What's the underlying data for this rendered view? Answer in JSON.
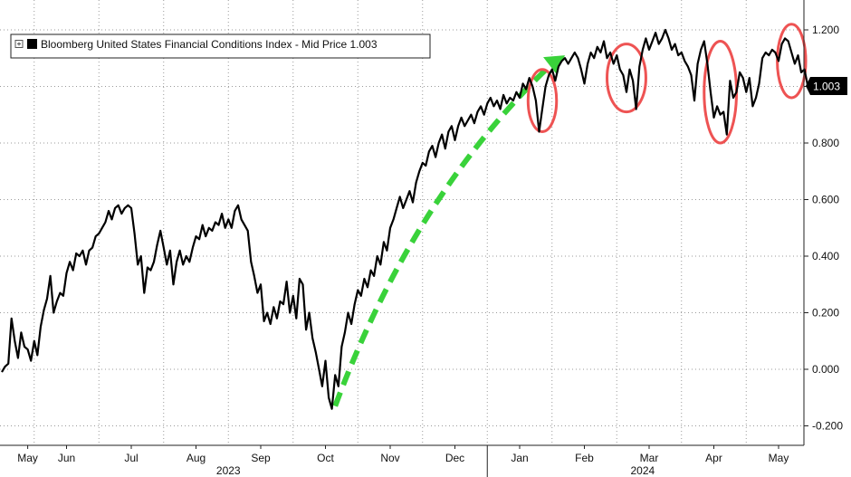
{
  "chart_data": {
    "type": "line",
    "title": "",
    "legend": {
      "label": "Bloomberg United States Financial Conditions Index - Mid Price 1.003",
      "placement": "top-left"
    },
    "last_value_label": "1.003",
    "yaxis": {
      "position": "right",
      "ylim": [
        -0.23,
        1.25
      ],
      "ticks": [
        "1.200",
        "1.000",
        "0.800",
        "0.600",
        "0.400",
        "0.200",
        "0.000",
        "-0.200"
      ]
    },
    "xaxis": {
      "months": [
        {
          "label": "May",
          "x": 0.4
        },
        {
          "label": "Jun",
          "x": 1.0
        },
        {
          "label": "Jul",
          "x": 2.0
        },
        {
          "label": "Aug",
          "x": 3.0
        },
        {
          "label": "Sep",
          "x": 4.0
        },
        {
          "label": "Oct",
          "x": 5.0
        },
        {
          "label": "Nov",
          "x": 6.0
        },
        {
          "label": "Dec",
          "x": 7.0
        },
        {
          "label": "Jan",
          "x": 8.0
        },
        {
          "label": "Feb",
          "x": 9.0
        },
        {
          "label": "Mar",
          "x": 10.0
        },
        {
          "label": "Apr",
          "x": 11.0
        },
        {
          "label": "May",
          "x": 12.0
        }
      ],
      "years": [
        {
          "label": "2023",
          "x": 3.5
        },
        {
          "label": "2024",
          "x": 9.9
        }
      ],
      "year_divider_x": 7.5
    },
    "grid": true,
    "series": [
      {
        "color": "#000000",
        "points": [
          [
            0.0,
            -0.01
          ],
          [
            0.05,
            0.01
          ],
          [
            0.1,
            0.02
          ],
          [
            0.15,
            0.18
          ],
          [
            0.2,
            0.1
          ],
          [
            0.25,
            0.04
          ],
          [
            0.3,
            0.13
          ],
          [
            0.35,
            0.08
          ],
          [
            0.4,
            0.07
          ],
          [
            0.45,
            0.03
          ],
          [
            0.5,
            0.1
          ],
          [
            0.55,
            0.05
          ],
          [
            0.6,
            0.15
          ],
          [
            0.65,
            0.21
          ],
          [
            0.7,
            0.25
          ],
          [
            0.75,
            0.33
          ],
          [
            0.8,
            0.2
          ],
          [
            0.85,
            0.24
          ],
          [
            0.9,
            0.27
          ],
          [
            0.95,
            0.26
          ],
          [
            1.0,
            0.34
          ],
          [
            1.05,
            0.38
          ],
          [
            1.1,
            0.35
          ],
          [
            1.15,
            0.41
          ],
          [
            1.2,
            0.4
          ],
          [
            1.25,
            0.42
          ],
          [
            1.3,
            0.37
          ],
          [
            1.35,
            0.42
          ],
          [
            1.4,
            0.43
          ],
          [
            1.45,
            0.47
          ],
          [
            1.5,
            0.48
          ],
          [
            1.55,
            0.5
          ],
          [
            1.6,
            0.52
          ],
          [
            1.65,
            0.56
          ],
          [
            1.7,
            0.53
          ],
          [
            1.75,
            0.57
          ],
          [
            1.8,
            0.58
          ],
          [
            1.85,
            0.55
          ],
          [
            1.9,
            0.57
          ],
          [
            1.95,
            0.58
          ],
          [
            2.0,
            0.57
          ],
          [
            2.05,
            0.48
          ],
          [
            2.1,
            0.37
          ],
          [
            2.15,
            0.4
          ],
          [
            2.2,
            0.27
          ],
          [
            2.25,
            0.36
          ],
          [
            2.3,
            0.35
          ],
          [
            2.35,
            0.38
          ],
          [
            2.4,
            0.44
          ],
          [
            2.45,
            0.49
          ],
          [
            2.5,
            0.43
          ],
          [
            2.55,
            0.37
          ],
          [
            2.6,
            0.42
          ],
          [
            2.65,
            0.3
          ],
          [
            2.7,
            0.38
          ],
          [
            2.75,
            0.42
          ],
          [
            2.8,
            0.37
          ],
          [
            2.85,
            0.4
          ],
          [
            2.9,
            0.38
          ],
          [
            2.95,
            0.43
          ],
          [
            3.0,
            0.47
          ],
          [
            3.05,
            0.46
          ],
          [
            3.1,
            0.51
          ],
          [
            3.15,
            0.47
          ],
          [
            3.2,
            0.5
          ],
          [
            3.25,
            0.49
          ],
          [
            3.3,
            0.52
          ],
          [
            3.35,
            0.51
          ],
          [
            3.4,
            0.55
          ],
          [
            3.45,
            0.5
          ],
          [
            3.5,
            0.53
          ],
          [
            3.55,
            0.5
          ],
          [
            3.6,
            0.56
          ],
          [
            3.65,
            0.58
          ],
          [
            3.7,
            0.53
          ],
          [
            3.75,
            0.51
          ],
          [
            3.8,
            0.49
          ],
          [
            3.85,
            0.38
          ],
          [
            3.9,
            0.33
          ],
          [
            3.95,
            0.27
          ],
          [
            4.0,
            0.3
          ],
          [
            4.05,
            0.17
          ],
          [
            4.1,
            0.2
          ],
          [
            4.15,
            0.16
          ],
          [
            4.2,
            0.22
          ],
          [
            4.25,
            0.18
          ],
          [
            4.3,
            0.24
          ],
          [
            4.35,
            0.23
          ],
          [
            4.4,
            0.31
          ],
          [
            4.45,
            0.2
          ],
          [
            4.5,
            0.26
          ],
          [
            4.55,
            0.18
          ],
          [
            4.6,
            0.32
          ],
          [
            4.65,
            0.3
          ],
          [
            4.7,
            0.14
          ],
          [
            4.75,
            0.2
          ],
          [
            4.8,
            0.11
          ],
          [
            4.85,
            0.06
          ],
          [
            4.9,
            0.0
          ],
          [
            4.95,
            -0.06
          ],
          [
            5.0,
            0.03
          ],
          [
            5.05,
            -0.1
          ],
          [
            5.1,
            -0.14
          ],
          [
            5.15,
            -0.02
          ],
          [
            5.2,
            -0.06
          ],
          [
            5.25,
            0.08
          ],
          [
            5.3,
            0.13
          ],
          [
            5.35,
            0.2
          ],
          [
            5.4,
            0.16
          ],
          [
            5.45,
            0.23
          ],
          [
            5.5,
            0.28
          ],
          [
            5.55,
            0.26
          ],
          [
            5.6,
            0.32
          ],
          [
            5.65,
            0.29
          ],
          [
            5.7,
            0.35
          ],
          [
            5.75,
            0.33
          ],
          [
            5.8,
            0.4
          ],
          [
            5.85,
            0.37
          ],
          [
            5.9,
            0.45
          ],
          [
            5.95,
            0.42
          ],
          [
            6.0,
            0.5
          ],
          [
            6.05,
            0.53
          ],
          [
            6.1,
            0.57
          ],
          [
            6.15,
            0.61
          ],
          [
            6.2,
            0.57
          ],
          [
            6.25,
            0.6
          ],
          [
            6.3,
            0.63
          ],
          [
            6.35,
            0.59
          ],
          [
            6.4,
            0.66
          ],
          [
            6.45,
            0.7
          ],
          [
            6.5,
            0.73
          ],
          [
            6.55,
            0.72
          ],
          [
            6.6,
            0.77
          ],
          [
            6.65,
            0.79
          ],
          [
            6.7,
            0.75
          ],
          [
            6.75,
            0.8
          ],
          [
            6.8,
            0.83
          ],
          [
            6.85,
            0.78
          ],
          [
            6.9,
            0.84
          ],
          [
            6.95,
            0.86
          ],
          [
            7.0,
            0.81
          ],
          [
            7.05,
            0.86
          ],
          [
            7.1,
            0.89
          ],
          [
            7.15,
            0.86
          ],
          [
            7.2,
            0.88
          ],
          [
            7.25,
            0.9
          ],
          [
            7.3,
            0.87
          ],
          [
            7.35,
            0.91
          ],
          [
            7.4,
            0.93
          ],
          [
            7.45,
            0.9
          ],
          [
            7.5,
            0.94
          ],
          [
            7.55,
            0.96
          ],
          [
            7.6,
            0.93
          ],
          [
            7.65,
            0.95
          ],
          [
            7.7,
            0.92
          ],
          [
            7.75,
            0.97
          ],
          [
            7.8,
            0.94
          ],
          [
            7.85,
            0.96
          ],
          [
            7.9,
            0.95
          ],
          [
            7.95,
            0.98
          ],
          [
            8.0,
            0.96
          ],
          [
            8.05,
            1.01
          ],
          [
            8.1,
            0.99
          ],
          [
            8.15,
            1.03
          ],
          [
            8.2,
            1.0
          ],
          [
            8.25,
            0.95
          ],
          [
            8.3,
            0.84
          ],
          [
            8.35,
            0.92
          ],
          [
            8.4,
            1.0
          ],
          [
            8.45,
            1.04
          ],
          [
            8.5,
            1.06
          ],
          [
            8.55,
            1.02
          ],
          [
            8.6,
            1.07
          ],
          [
            8.65,
            1.09
          ],
          [
            8.7,
            1.1
          ],
          [
            8.75,
            1.08
          ],
          [
            8.8,
            1.1
          ],
          [
            8.85,
            1.12
          ],
          [
            8.9,
            1.1
          ],
          [
            8.95,
            1.06
          ],
          [
            9.0,
            1.01
          ],
          [
            9.05,
            1.08
          ],
          [
            9.1,
            1.12
          ],
          [
            9.15,
            1.1
          ],
          [
            9.2,
            1.14
          ],
          [
            9.25,
            1.12
          ],
          [
            9.3,
            1.16
          ],
          [
            9.35,
            1.1
          ],
          [
            9.4,
            1.12
          ],
          [
            9.45,
            1.08
          ],
          [
            9.5,
            1.11
          ],
          [
            9.55,
            1.06
          ],
          [
            9.6,
            1.04
          ],
          [
            9.65,
            0.98
          ],
          [
            9.7,
            1.06
          ],
          [
            9.75,
            1.02
          ],
          [
            9.8,
            0.92
          ],
          [
            9.85,
            1.07
          ],
          [
            9.9,
            1.13
          ],
          [
            9.95,
            1.17
          ],
          [
            10.0,
            1.13
          ],
          [
            10.05,
            1.16
          ],
          [
            10.1,
            1.19
          ],
          [
            10.15,
            1.15
          ],
          [
            10.2,
            1.17
          ],
          [
            10.25,
            1.2
          ],
          [
            10.3,
            1.17
          ],
          [
            10.35,
            1.13
          ],
          [
            10.4,
            1.15
          ],
          [
            10.45,
            1.11
          ],
          [
            10.5,
            1.12
          ],
          [
            10.55,
            1.09
          ],
          [
            10.6,
            1.07
          ],
          [
            10.65,
            1.04
          ],
          [
            10.7,
            0.95
          ],
          [
            10.75,
            1.08
          ],
          [
            10.8,
            1.13
          ],
          [
            10.85,
            1.16
          ],
          [
            10.9,
            1.08
          ],
          [
            10.95,
            0.98
          ],
          [
            11.0,
            0.89
          ],
          [
            11.05,
            0.93
          ],
          [
            11.1,
            0.9
          ],
          [
            11.15,
            0.91
          ],
          [
            11.2,
            0.83
          ],
          [
            11.25,
            1.02
          ],
          [
            11.3,
            0.96
          ],
          [
            11.35,
            0.98
          ],
          [
            11.4,
            1.05
          ],
          [
            11.45,
            1.03
          ],
          [
            11.5,
            0.98
          ],
          [
            11.55,
            1.03
          ],
          [
            11.6,
            0.93
          ],
          [
            11.65,
            0.96
          ],
          [
            11.7,
            1.01
          ],
          [
            11.75,
            1.1
          ],
          [
            11.8,
            1.12
          ],
          [
            11.85,
            1.11
          ],
          [
            11.9,
            1.13
          ],
          [
            11.95,
            1.12
          ],
          [
            12.0,
            1.09
          ],
          [
            12.05,
            1.15
          ],
          [
            12.1,
            1.17
          ],
          [
            12.15,
            1.16
          ],
          [
            12.2,
            1.12
          ],
          [
            12.25,
            1.08
          ],
          [
            12.3,
            1.11
          ],
          [
            12.35,
            1.05
          ],
          [
            12.4,
            1.06
          ],
          [
            12.45,
            1.003
          ]
        ]
      }
    ],
    "annotations": {
      "arrow": {
        "color": "#39d23a",
        "from": [
          5.15,
          -0.13
        ],
        "to": [
          8.7,
          1.11
        ]
      },
      "ellipses": [
        {
          "color": "#ee5353",
          "center": [
            8.35,
            0.95
          ],
          "rx": 0.22,
          "ry": 0.11
        },
        {
          "color": "#ee5353",
          "center": [
            9.65,
            1.03
          ],
          "rx": 0.3,
          "ry": 0.12
        },
        {
          "color": "#ee5353",
          "center": [
            11.1,
            0.98
          ],
          "rx": 0.25,
          "ry": 0.18
        },
        {
          "color": "#ee5353",
          "center": [
            12.2,
            1.09
          ],
          "rx": 0.22,
          "ry": 0.13
        }
      ]
    }
  }
}
